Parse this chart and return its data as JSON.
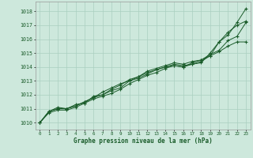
{
  "xlabel": "Graphe pression niveau de la mer (hPa)",
  "xlim": [
    -0.5,
    23.5
  ],
  "ylim": [
    1009.5,
    1018.7
  ],
  "yticks": [
    1010,
    1011,
    1012,
    1013,
    1014,
    1015,
    1016,
    1017,
    1018
  ],
  "xticks": [
    0,
    1,
    2,
    3,
    4,
    5,
    6,
    7,
    8,
    9,
    10,
    11,
    12,
    13,
    14,
    15,
    16,
    17,
    18,
    19,
    20,
    21,
    22,
    23
  ],
  "bg_color": "#cde8dc",
  "grid_color": "#aacfc0",
  "line_color": "#1a5c2a",
  "axis_color": "#999999",
  "curves": [
    [
      1010.0,
      1010.8,
      1011.0,
      1011.0,
      1011.2,
      1011.5,
      1011.8,
      1012.2,
      1012.5,
      1012.8,
      1013.0,
      1013.3,
      1013.6,
      1013.8,
      1014.0,
      1014.2,
      1014.1,
      1014.2,
      1014.3,
      1015.0,
      1015.8,
      1016.3,
      1017.2,
      1018.2
    ],
    [
      1010.0,
      1010.8,
      1011.0,
      1011.0,
      1011.2,
      1011.5,
      1011.8,
      1012.0,
      1012.3,
      1012.5,
      1013.0,
      1013.2,
      1013.5,
      1013.8,
      1014.0,
      1014.1,
      1014.0,
      1014.2,
      1014.4,
      1014.8,
      1015.8,
      1016.5,
      1017.0,
      1017.3
    ],
    [
      1010.0,
      1010.8,
      1011.1,
      1011.0,
      1011.3,
      1011.4,
      1011.9,
      1012.0,
      1012.4,
      1012.7,
      1013.1,
      1013.3,
      1013.7,
      1013.9,
      1014.1,
      1014.3,
      1014.2,
      1014.4,
      1014.5,
      1014.9,
      1015.2,
      1015.9,
      1016.2,
      1017.2
    ],
    [
      1010.0,
      1010.7,
      1010.9,
      1010.9,
      1011.1,
      1011.4,
      1011.7,
      1011.9,
      1012.1,
      1012.4,
      1012.8,
      1013.1,
      1013.4,
      1013.6,
      1013.9,
      1014.1,
      1014.0,
      1014.3,
      1014.5,
      1014.8,
      1015.1,
      1015.5,
      1015.8,
      1015.8
    ]
  ]
}
